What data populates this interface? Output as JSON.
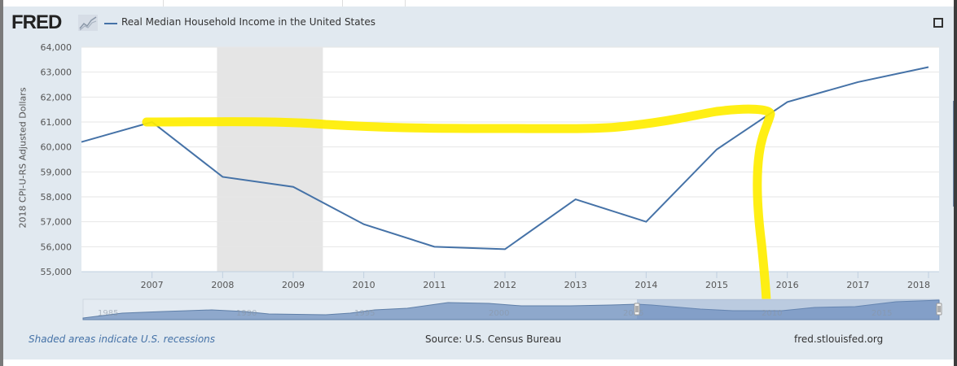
{
  "header": {
    "logo": "FRED",
    "logo_icon": "chart-line-icon",
    "series_label": "Real Median Household Income in the United States",
    "fullscreen_icon": "fullscreen-icon"
  },
  "footer": {
    "recession_note": "Shaded areas indicate U.S. recessions",
    "source": "Source: U.S. Census Bureau",
    "site": "fred.stlouisfed.org"
  },
  "colors": {
    "series": "#4572a7",
    "recession": "#e5e5e5",
    "highlight": "#ffee00",
    "panel": "#e1e9f0"
  },
  "navigator": {
    "tick_labels": [
      "1985",
      "1990",
      "1995",
      "2000",
      "2005",
      "2010",
      "2015"
    ]
  },
  "chart_data": {
    "type": "line",
    "title": "Real Median Household Income in the United States",
    "xlabel": "",
    "ylabel": "2018 CPI-U-RS Adjusted Dollars",
    "x": [
      2006,
      2007,
      2008,
      2009,
      2010,
      2011,
      2012,
      2013,
      2014,
      2015,
      2016,
      2017,
      2018
    ],
    "series": [
      {
        "name": "Real Median Household Income in the United States",
        "values": [
          60200,
          61000,
          58800,
          58400,
          56900,
          56000,
          55900,
          57900,
          57000,
          59900,
          61800,
          62600,
          63200
        ]
      }
    ],
    "xlim": [
      2006,
      2018.15
    ],
    "ylim": [
      55000,
      64000
    ],
    "x_ticks": [
      "2007",
      "2008",
      "2009",
      "2010",
      "2011",
      "2012",
      "2013",
      "2014",
      "2015",
      "2016",
      "2017",
      "2018"
    ],
    "y_ticks": [
      "55,000",
      "56,000",
      "57,000",
      "58,000",
      "59,000",
      "60,000",
      "61,000",
      "62,000",
      "63,000",
      "64,000"
    ],
    "y_tick_values": [
      55000,
      56000,
      57000,
      58000,
      59000,
      60000,
      61000,
      62000,
      63000,
      64000
    ],
    "recessions": [
      {
        "start": 2007.92,
        "end": 2009.42
      }
    ],
    "grid": true,
    "legend": "top-left",
    "annotations": [
      {
        "type": "hand-drawn highlight",
        "description": "yellow marker line from 2007 peak level (~61,000) across to ~2015.6, then down"
      }
    ]
  }
}
